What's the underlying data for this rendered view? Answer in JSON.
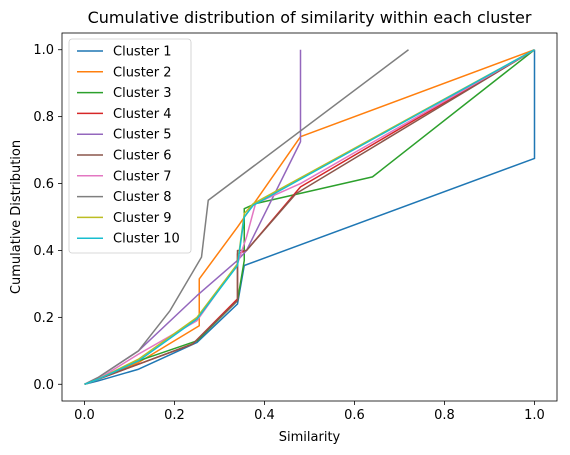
{
  "chart_data": {
    "type": "line",
    "title": "Cumulative distribution of similarity within each cluster",
    "xlabel": "Similarity",
    "ylabel": "Cumulative Distribution",
    "xlim": [
      -0.05,
      1.05
    ],
    "ylim": [
      -0.05,
      1.05
    ],
    "xticks": [
      0.0,
      0.2,
      0.4,
      0.6,
      0.8,
      1.0
    ],
    "yticks": [
      0.0,
      0.2,
      0.4,
      0.6,
      0.8,
      1.0
    ],
    "xtick_labels": [
      "0.0",
      "0.2",
      "0.4",
      "0.6",
      "0.8",
      "1.0"
    ],
    "ytick_labels": [
      "0.0",
      "0.2",
      "0.4",
      "0.6",
      "0.8",
      "1.0"
    ],
    "grid": false,
    "legend_position": "top-left",
    "series": [
      {
        "name": "Cluster 1",
        "color": "#1f77b4",
        "x": [
          0,
          0.03,
          0.12,
          0.25,
          0.34,
          0.355,
          1.0,
          1.0
        ],
        "y": [
          0,
          0.01,
          0.045,
          0.125,
          0.24,
          0.355,
          0.675,
          1.0
        ]
      },
      {
        "name": "Cluster 2",
        "color": "#ff7f0e",
        "x": [
          0,
          0.03,
          0.12,
          0.255,
          0.255,
          0.34,
          0.48,
          1.0
        ],
        "y": [
          0,
          0.015,
          0.065,
          0.175,
          0.315,
          0.47,
          0.74,
          1.0
        ]
      },
      {
        "name": "Cluster 3",
        "color": "#2ca02c",
        "x": [
          0,
          0.03,
          0.12,
          0.25,
          0.34,
          0.355,
          0.355,
          0.38,
          0.64,
          1.0
        ],
        "y": [
          0,
          0.015,
          0.07,
          0.13,
          0.25,
          0.37,
          0.525,
          0.54,
          0.62,
          1.0
        ]
      },
      {
        "name": "Cluster 4",
        "color": "#d62728",
        "x": [
          0,
          0.03,
          0.12,
          0.24,
          0.34,
          0.34,
          0.36,
          0.48,
          1.0
        ],
        "y": [
          0,
          0.015,
          0.06,
          0.12,
          0.255,
          0.39,
          0.4,
          0.59,
          1.0
        ]
      },
      {
        "name": "Cluster 5",
        "color": "#9467bd",
        "x": [
          0,
          0.03,
          0.12,
          0.25,
          0.34,
          0.36,
          0.48,
          0.48
        ],
        "y": [
          0,
          0.02,
          0.1,
          0.265,
          0.37,
          0.4,
          0.725,
          1.0
        ]
      },
      {
        "name": "Cluster 6",
        "color": "#8c564b",
        "x": [
          0,
          0.03,
          0.12,
          0.24,
          0.34,
          0.34,
          0.36,
          0.47,
          1.0
        ],
        "y": [
          0,
          0.015,
          0.06,
          0.12,
          0.25,
          0.4,
          0.4,
          0.57,
          1.0
        ]
      },
      {
        "name": "Cluster 7",
        "color": "#e377c2",
        "x": [
          0,
          0.03,
          0.12,
          0.25,
          0.34,
          0.36,
          0.38,
          0.48,
          1.0
        ],
        "y": [
          0,
          0.015,
          0.09,
          0.19,
          0.36,
          0.44,
          0.54,
          0.6,
          1.0
        ]
      },
      {
        "name": "Cluster 8",
        "color": "#7f7f7f",
        "x": [
          0,
          0.03,
          0.12,
          0.19,
          0.26,
          0.275,
          0.72
        ],
        "y": [
          0,
          0.02,
          0.1,
          0.22,
          0.38,
          0.55,
          1.0
        ]
      },
      {
        "name": "Cluster 9",
        "color": "#bcbd22",
        "x": [
          0,
          0.03,
          0.12,
          0.25,
          0.34,
          0.355,
          0.375,
          1.0
        ],
        "y": [
          0,
          0.015,
          0.075,
          0.2,
          0.36,
          0.51,
          0.54,
          1.0
        ]
      },
      {
        "name": "Cluster 10",
        "color": "#17becf",
        "x": [
          0,
          0.03,
          0.12,
          0.25,
          0.34,
          0.355,
          0.375,
          1.0
        ],
        "y": [
          0,
          0.015,
          0.07,
          0.195,
          0.355,
          0.5,
          0.535,
          1.0
        ]
      }
    ]
  }
}
